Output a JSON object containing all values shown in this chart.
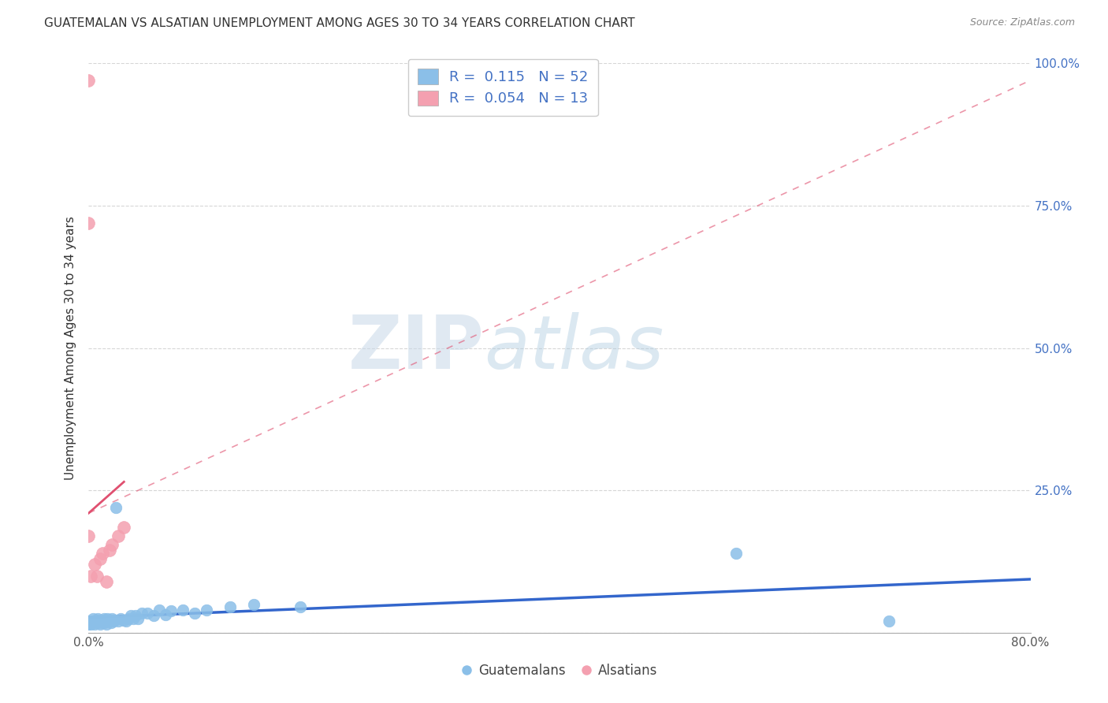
{
  "title": "GUATEMALAN VS ALSATIAN UNEMPLOYMENT AMONG AGES 30 TO 34 YEARS CORRELATION CHART",
  "source": "Source: ZipAtlas.com",
  "ylabel": "Unemployment Among Ages 30 to 34 years",
  "xlim": [
    0.0,
    0.8
  ],
  "ylim": [
    0.0,
    1.0
  ],
  "xticks": [
    0.0,
    0.1,
    0.2,
    0.3,
    0.4,
    0.5,
    0.6,
    0.7,
    0.8
  ],
  "xticklabels": [
    "0.0%",
    "",
    "",
    "",
    "",
    "",
    "",
    "",
    "80.0%"
  ],
  "yticks": [
    0.0,
    0.25,
    0.5,
    0.75,
    1.0
  ],
  "yticklabels": [
    "",
    "25.0%",
    "50.0%",
    "75.0%",
    "100.0%"
  ],
  "guatemalan_color": "#8bbfe8",
  "alsatian_color": "#f4a0b0",
  "trend_guatemalan_color": "#3366cc",
  "trend_alsatian_color": "#e05070",
  "watermark_zip": "ZIP",
  "watermark_atlas": "atlas",
  "legend_R1": "0.115",
  "legend_N1": "52",
  "legend_R2": "0.054",
  "legend_N2": "13",
  "legend_color": "#4472c4",
  "guatemalan_x": [
    0.0,
    0.0,
    0.001,
    0.002,
    0.003,
    0.004,
    0.005,
    0.005,
    0.006,
    0.007,
    0.008,
    0.009,
    0.01,
    0.01,
    0.011,
    0.012,
    0.013,
    0.013,
    0.014,
    0.015,
    0.015,
    0.016,
    0.017,
    0.018,
    0.019,
    0.02,
    0.021,
    0.022,
    0.023,
    0.025,
    0.027,
    0.03,
    0.032,
    0.034,
    0.036,
    0.038,
    0.04,
    0.042,
    0.045,
    0.05,
    0.055,
    0.06,
    0.065,
    0.07,
    0.08,
    0.09,
    0.1,
    0.12,
    0.14,
    0.18,
    0.55,
    0.68
  ],
  "guatemalan_y": [
    0.02,
    0.015,
    0.018,
    0.015,
    0.02,
    0.025,
    0.015,
    0.02,
    0.018,
    0.022,
    0.025,
    0.018,
    0.02,
    0.015,
    0.022,
    0.02,
    0.018,
    0.025,
    0.022,
    0.02,
    0.015,
    0.025,
    0.02,
    0.022,
    0.018,
    0.025,
    0.02,
    0.022,
    0.22,
    0.02,
    0.025,
    0.022,
    0.02,
    0.025,
    0.03,
    0.025,
    0.03,
    0.025,
    0.035,
    0.035,
    0.03,
    0.04,
    0.032,
    0.038,
    0.04,
    0.035,
    0.04,
    0.045,
    0.05,
    0.045,
    0.14,
    0.02
  ],
  "alsatian_x": [
    0.0,
    0.0,
    0.0,
    0.002,
    0.005,
    0.007,
    0.01,
    0.012,
    0.015,
    0.018,
    0.02,
    0.025,
    0.03
  ],
  "alsatian_y": [
    0.97,
    0.72,
    0.17,
    0.1,
    0.12,
    0.1,
    0.13,
    0.14,
    0.09,
    0.145,
    0.155,
    0.17,
    0.185
  ],
  "alsatian_trend_x0": 0.0,
  "alsatian_trend_y0": 0.21,
  "alsatian_trend_x1": 0.03,
  "alsatian_trend_y1": 0.265,
  "guatemalan_trend_x0": 0.0,
  "guatemalan_trend_x1": 0.8,
  "dashed_trend_x0": 0.0,
  "dashed_trend_y0": 0.21,
  "dashed_trend_x1": 0.8,
  "dashed_trend_y1": 0.97
}
